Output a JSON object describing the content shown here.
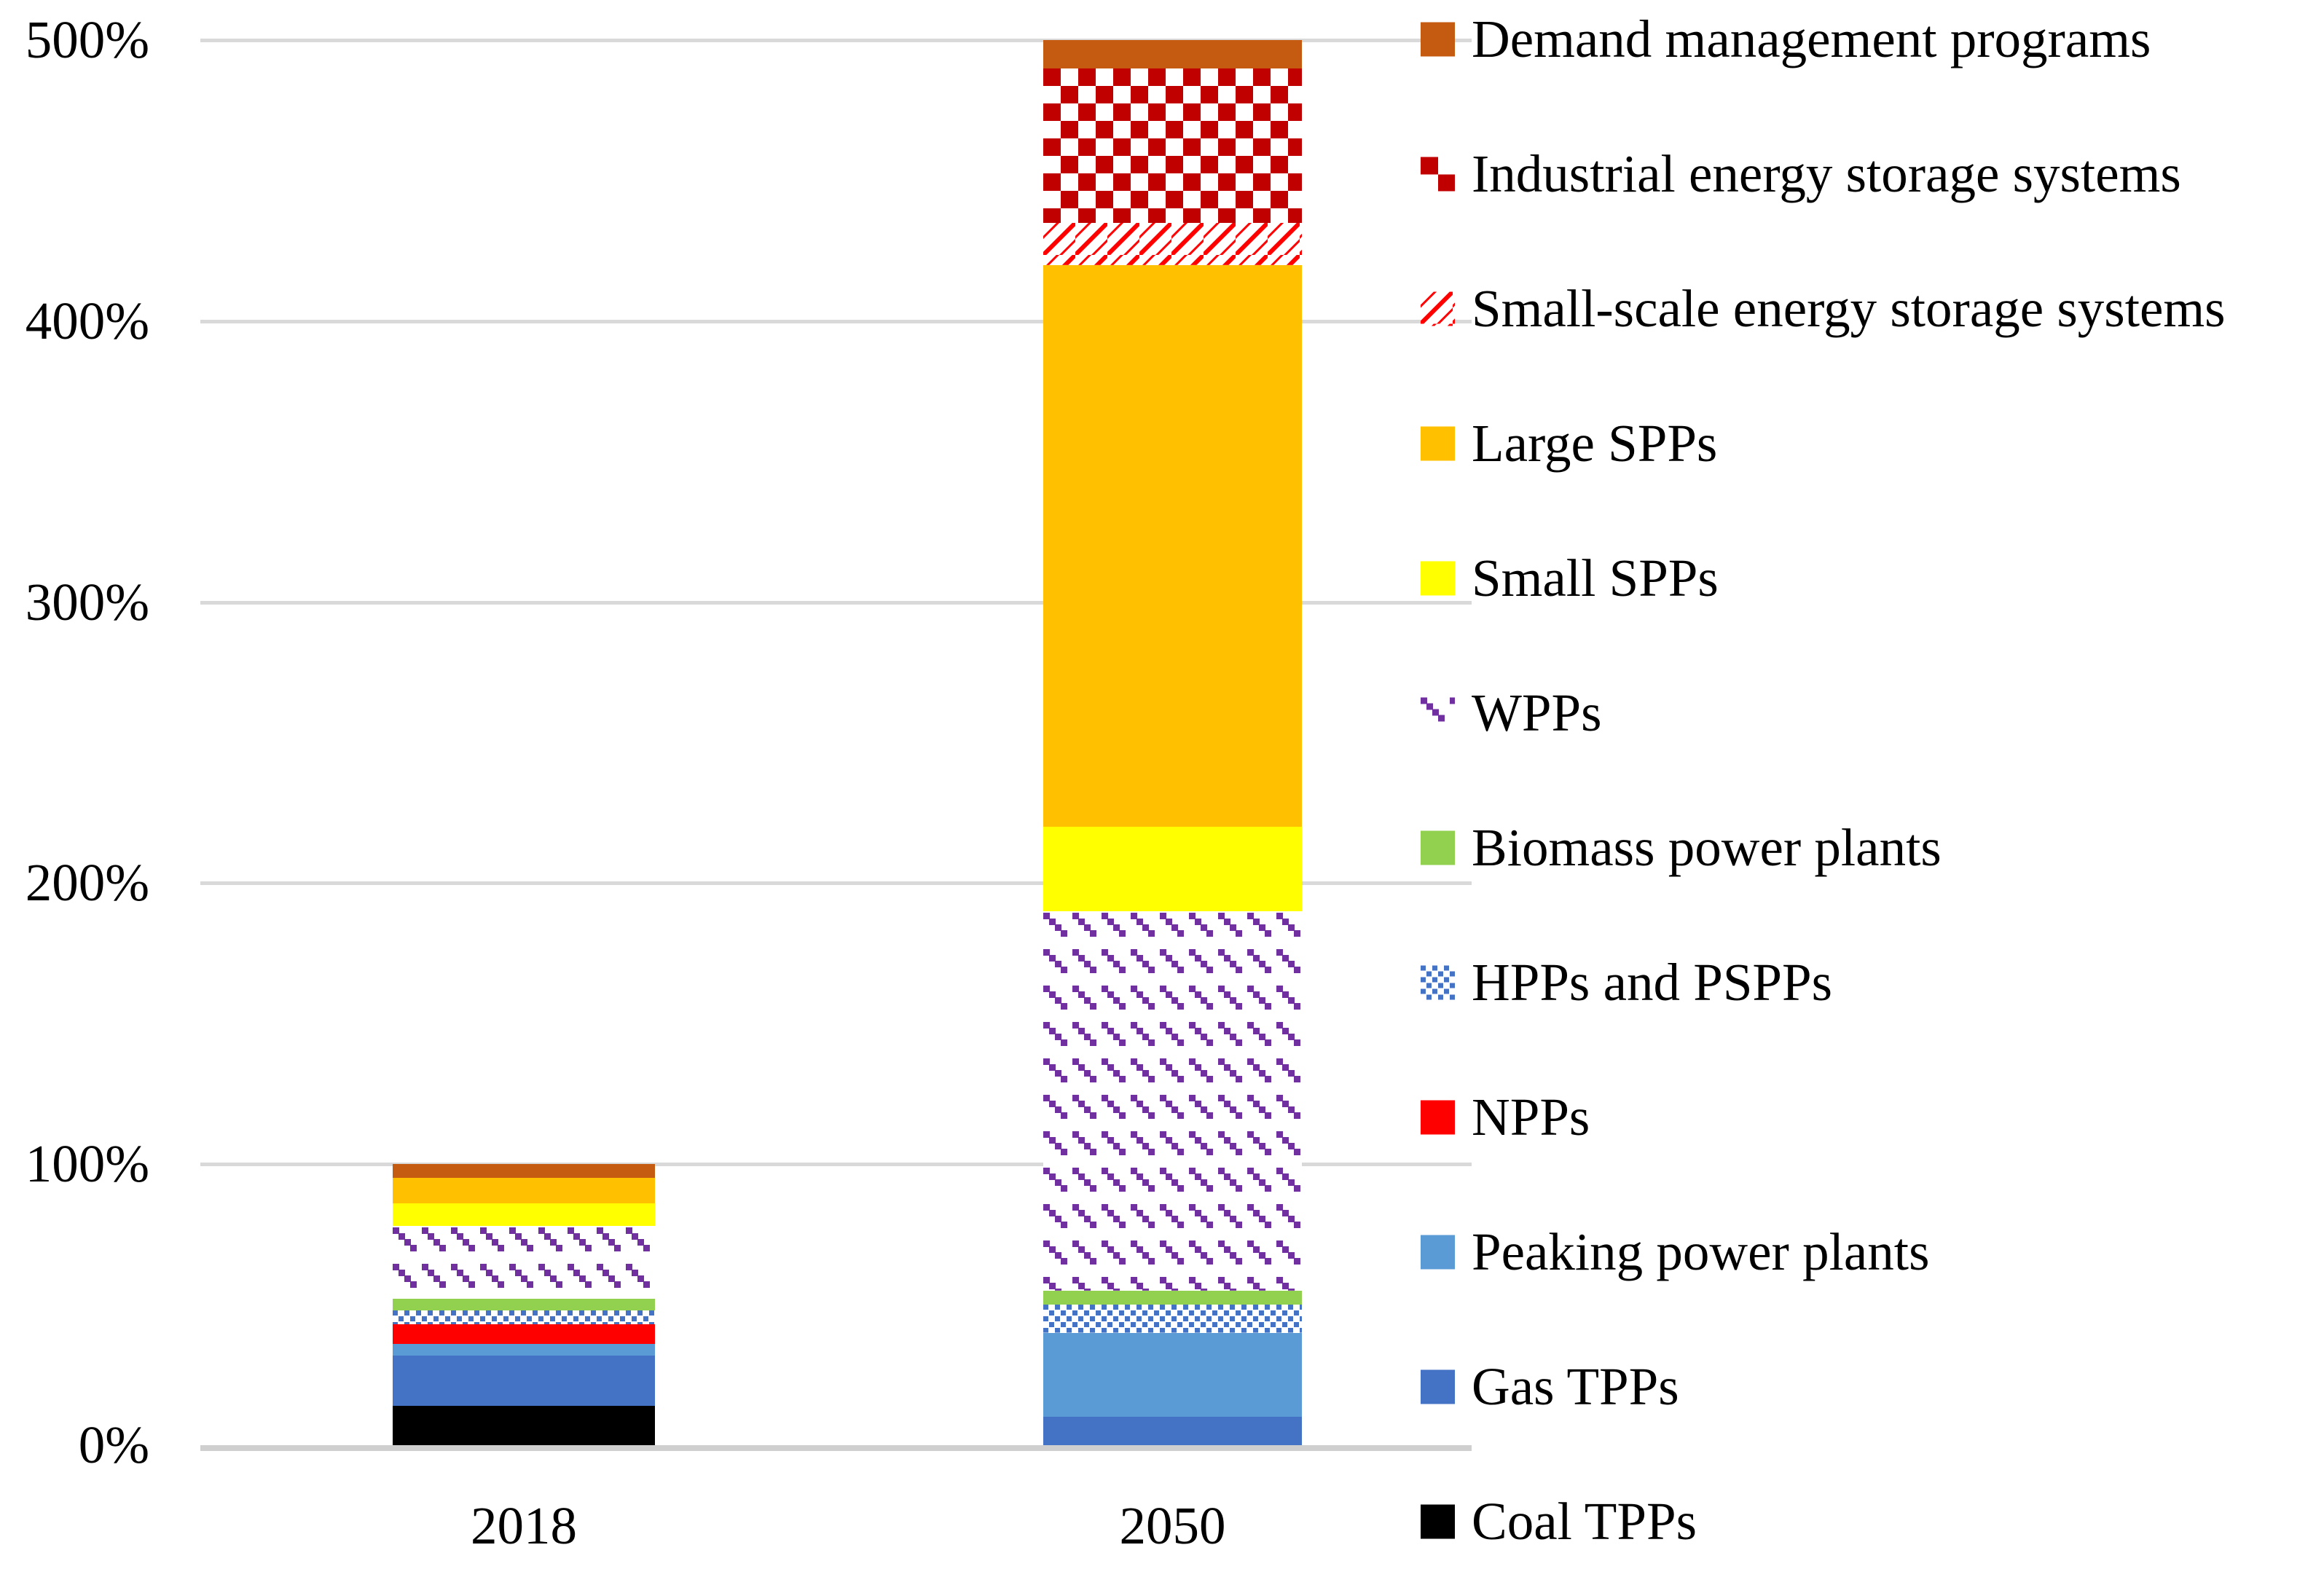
{
  "figure": {
    "background": "#ffffff",
    "text_color": "#000000",
    "gridline_color": "#D9D9D9",
    "axisline_color": "#CFCFCF"
  },
  "chart_data": {
    "type": "bar",
    "stacked": true,
    "title": "",
    "xlabel": "",
    "ylabel": "",
    "categories": [
      "2018",
      "2050"
    ],
    "ylim": [
      0,
      500
    ],
    "ytick_labels": [
      "0%",
      "100%",
      "200%",
      "300%",
      "400%",
      "500%"
    ],
    "grid": true,
    "legend_position": "right",
    "series": [
      {
        "key": "coal",
        "name": "Coal TPPs",
        "fill": "solid",
        "color": "#000000",
        "values": [
          14,
          0
        ]
      },
      {
        "key": "gas",
        "name": "Gas TPPs",
        "fill": "solid",
        "color": "#4472C4",
        "values": [
          18,
          10
        ]
      },
      {
        "key": "peaking",
        "name": "Peaking power plants",
        "fill": "solid",
        "color": "#5B9BD5",
        "values": [
          4,
          30
        ]
      },
      {
        "key": "npp",
        "name": "NPPs",
        "fill": "solid",
        "color": "#FF0000",
        "values": [
          7,
          0
        ]
      },
      {
        "key": "hpp-pspp",
        "name": "HPPs and PSPPs",
        "fill": "pattern",
        "pattern": "pat-dots",
        "color": "#4472C4",
        "values": [
          5,
          10
        ]
      },
      {
        "key": "biomass",
        "name": "Biomass power plants",
        "fill": "solid",
        "color": "#92D050",
        "values": [
          4,
          5
        ]
      },
      {
        "key": "wpp",
        "name": "WPPs",
        "fill": "pattern",
        "pattern": "pat-wpp",
        "color": "#7030A0",
        "values": [
          26,
          135
        ]
      },
      {
        "key": "small-spp",
        "name": "Small SPPs",
        "fill": "solid",
        "color": "#FFFF00",
        "values": [
          8,
          30
        ]
      },
      {
        "key": "large-spp",
        "name": "Large SPPs",
        "fill": "solid",
        "color": "#FFC000",
        "values": [
          9,
          200
        ]
      },
      {
        "key": "small-storage",
        "name": "Small-scale energy storage systems",
        "fill": "pattern",
        "pattern": "pat-diag",
        "color": "#FF0000",
        "values": [
          0,
          15
        ]
      },
      {
        "key": "industrial-storage",
        "name": "Industrial energy storage systems",
        "fill": "pattern",
        "pattern": "pat-checker",
        "color": "#C00000",
        "values": [
          0,
          55
        ]
      },
      {
        "key": "demand",
        "name": "Demand management programs",
        "fill": "solid",
        "color": "#C55A11",
        "values": [
          5,
          10
        ]
      }
    ],
    "totals": {
      "2018": 100,
      "2050": 500
    },
    "legend_order_top_to_bottom": [
      "Demand management programs",
      "Industrial energy storage systems",
      "Small-scale energy storage systems",
      "Large SPPs",
      "Small SPPs",
      "WPPs",
      "Biomass power plants",
      "HPPs and PSPPs",
      "NPPs",
      "Peaking power plants",
      "Gas TPPs",
      "Coal TPPs"
    ]
  }
}
